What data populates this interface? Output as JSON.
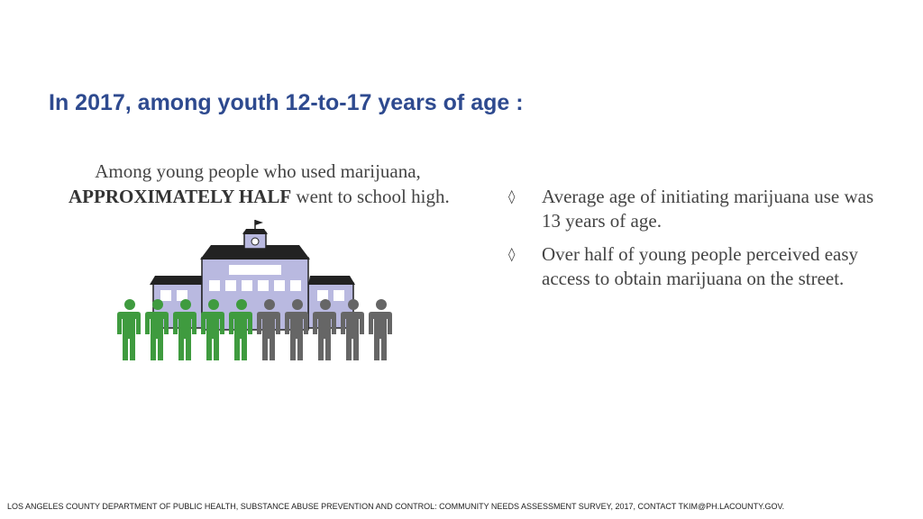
{
  "slide": {
    "title": "In 2017, among youth 12-to-17 years of age :",
    "infographic": {
      "caption_line1": "Among young people who used marijuana,",
      "caption_emphasis": "APPROXIMATELY HALF",
      "caption_rest": " went to school high.",
      "people_total": 10,
      "people_highlighted": 5,
      "colors": {
        "highlighted_person": "#3f9b3f",
        "other_person": "#666666",
        "building": "#b9b9e0",
        "roof": "#222222"
      }
    },
    "bullets": [
      {
        "marker": "◊",
        "text": "Average age of initiating marijuana use was 13 years of age."
      },
      {
        "marker": "◊",
        "text": "Over half of young people perceived easy access to obtain marijuana on the street."
      }
    ],
    "footer": "LOS ANGELES COUNTY DEPARTMENT OF PUBLIC HEALTH, SUBSTANCE ABUSE PREVENTION AND CONTROL: COMMUNITY NEEDS ASSESSMENT SURVEY, 2017, CONTACT TKIM@PH.LACOUNTY.GOV."
  }
}
